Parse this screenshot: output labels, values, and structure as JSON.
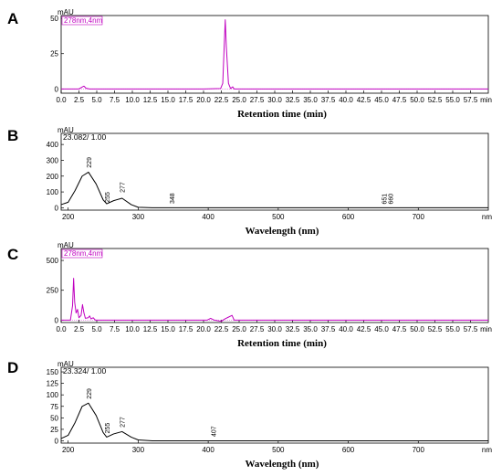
{
  "chart_data": [
    {
      "panel": "A",
      "type": "line",
      "legend": "278nm,4nm",
      "yunit": "mAU",
      "xunit": "min",
      "xlabel": "Retention time (min)",
      "xlim": [
        0,
        60
      ],
      "ylim": [
        -3,
        52
      ],
      "xticks": [
        "0.0",
        "2.5",
        "5.0",
        "7.5",
        "10.0",
        "12.5",
        "15.0",
        "17.5",
        "20.0",
        "22.5",
        "25.0",
        "27.5",
        "30.0",
        "32.5",
        "35.0",
        "37.5",
        "40.0",
        "42.5",
        "45.0",
        "47.5",
        "50.0",
        "52.5",
        "55.0",
        "57.5"
      ],
      "yticks": [
        0,
        25,
        50
      ],
      "color": "#c000c0",
      "x": [
        0,
        2.5,
        3.0,
        3.2,
        3.5,
        4.0,
        20.0,
        22.4,
        22.7,
        22.9,
        23.05,
        23.2,
        23.5,
        23.8,
        24.1,
        24.3,
        60
      ],
      "y": [
        0,
        0,
        1.5,
        2.0,
        0.5,
        0,
        0,
        0.3,
        4,
        30,
        49,
        30,
        4,
        0.3,
        1.5,
        0,
        0
      ]
    },
    {
      "panel": "B",
      "type": "line",
      "header": "23.082/ 1.00",
      "yunit": "mAU",
      "xunit": "nm",
      "xlabel": "Wavelength (nm)",
      "xlim": [
        190,
        800
      ],
      "ylim": [
        -15,
        470
      ],
      "xticks": [
        "200",
        "300",
        "400",
        "500",
        "600",
        "700"
      ],
      "yticks": [
        0,
        100,
        200,
        300,
        400
      ],
      "color": "#000000",
      "peak_labels": [
        "229",
        "255",
        "277",
        "348",
        "651",
        "660"
      ],
      "peak_label_x": [
        229,
        255,
        277,
        348,
        651,
        660
      ],
      "peak_label_y": [
        235,
        15,
        78,
        8,
        5,
        5
      ],
      "x": [
        190,
        200,
        210,
        220,
        229,
        240,
        250,
        255,
        265,
        277,
        290,
        300,
        320,
        400,
        800
      ],
      "y": [
        20,
        35,
        110,
        200,
        225,
        150,
        50,
        25,
        45,
        60,
        20,
        3,
        0,
        0,
        0
      ]
    },
    {
      "panel": "C",
      "type": "line",
      "legend": "278nm,4nm",
      "yunit": "mAU",
      "xunit": "min",
      "xlabel": "Retention time (min)",
      "xlim": [
        0,
        60
      ],
      "ylim": [
        -20,
        600
      ],
      "xticks": [
        "0.0",
        "2.5",
        "5.0",
        "7.5",
        "10.0",
        "12.5",
        "15.0",
        "17.5",
        "20.0",
        "22.5",
        "25.0",
        "27.5",
        "30.0",
        "32.5",
        "35.0",
        "37.5",
        "40.0",
        "42.5",
        "45.0",
        "47.5",
        "50.0",
        "52.5",
        "55.0",
        "57.5"
      ],
      "yticks": [
        0,
        250,
        500
      ],
      "color": "#c000c0",
      "x": [
        0,
        1.3,
        1.6,
        1.75,
        1.9,
        2.1,
        2.3,
        2.5,
        2.8,
        3.0,
        3.2,
        3.4,
        3.8,
        4.0,
        4.2,
        4.5,
        4.8,
        20.5,
        21.0,
        21.5,
        22.5,
        23.0,
        23.5,
        24.0,
        24.3,
        60
      ],
      "y": [
        0,
        0,
        120,
        350,
        150,
        60,
        90,
        20,
        40,
        130,
        60,
        15,
        20,
        35,
        10,
        20,
        0,
        0,
        15,
        0,
        -10,
        10,
        25,
        40,
        0,
        0
      ]
    },
    {
      "panel": "D",
      "type": "line",
      "header": "23.324/ 1.00",
      "yunit": "mAU",
      "xunit": "nm",
      "xlabel": "Wavelength (nm)",
      "xlim": [
        190,
        800
      ],
      "ylim": [
        -5,
        160
      ],
      "xticks": [
        "200",
        "300",
        "400",
        "500",
        "600",
        "700"
      ],
      "yticks": [
        0,
        25,
        50,
        75,
        100,
        125,
        150
      ],
      "color": "#000000",
      "peak_labels": [
        "229",
        "255",
        "277",
        "407"
      ],
      "peak_label_x": [
        229,
        255,
        277,
        407
      ],
      "peak_label_y": [
        85,
        10,
        23,
        3
      ],
      "x": [
        190,
        200,
        210,
        220,
        229,
        240,
        250,
        255,
        265,
        277,
        290,
        300,
        320,
        400,
        800
      ],
      "y": [
        5,
        12,
        40,
        75,
        82,
        55,
        18,
        8,
        15,
        20,
        8,
        2,
        0,
        0,
        0
      ]
    }
  ]
}
